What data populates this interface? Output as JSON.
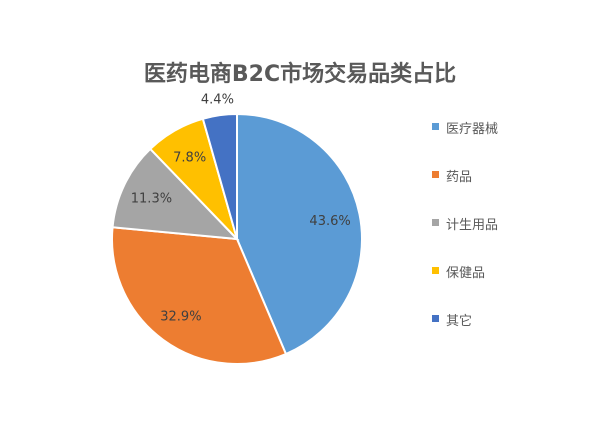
{
  "chart_data": {
    "type": "pie",
    "title": "医药电商B2C市场交易品类占比",
    "categories": [
      "医疗器械",
      "药品",
      "计生用品",
      "保健品",
      "其它"
    ],
    "values": [
      43.6,
      32.9,
      11.3,
      7.8,
      4.4
    ],
    "labels": [
      "43.6%",
      "32.9%",
      "11.3%",
      "7.8%",
      "4.4%"
    ],
    "colors": [
      "#5B9BD5",
      "#ED7D31",
      "#A5A5A5",
      "#FFC000",
      "#4472C4"
    ],
    "start": "top, clockwise",
    "legend": "right"
  }
}
